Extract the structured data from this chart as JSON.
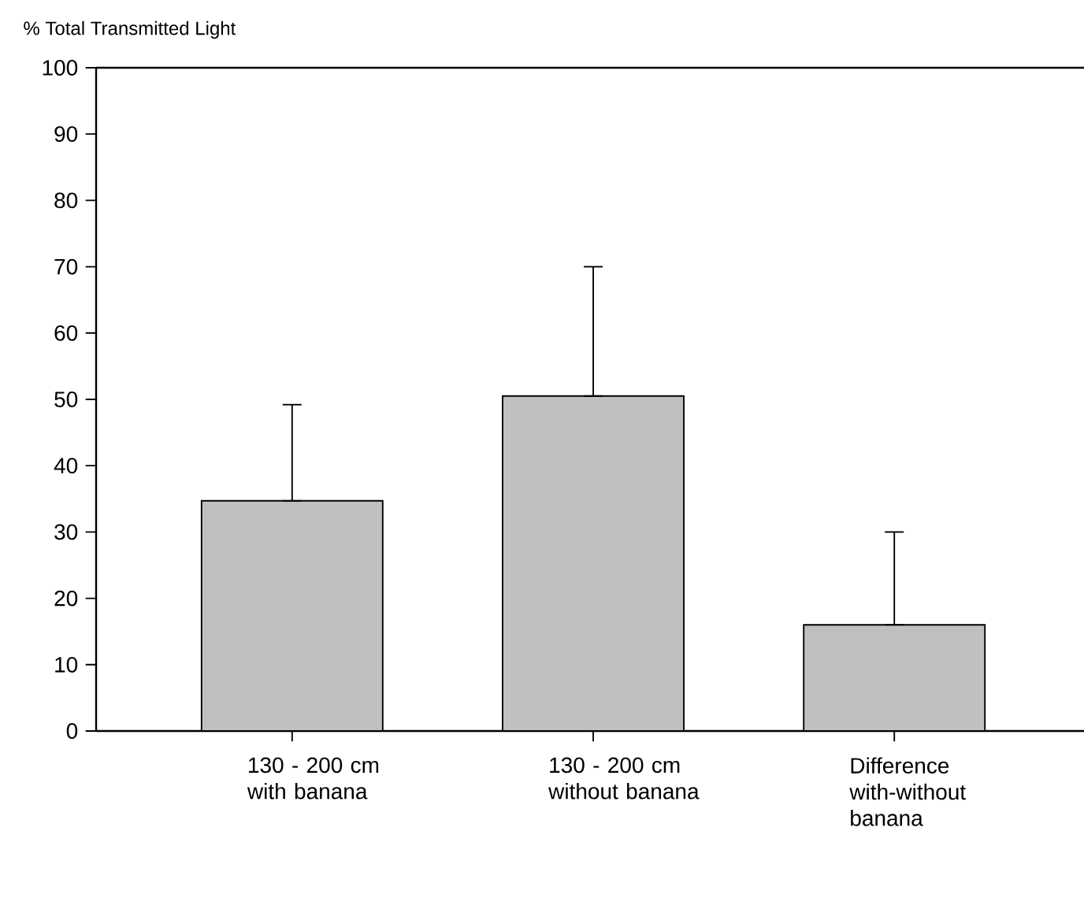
{
  "chart_data": {
    "type": "bar",
    "ylabel": "% Total Transmitted Light",
    "categories": [
      "130 - 200 cm\nwith banana",
      "130 - 200 cm\nwithout banana",
      "Difference\nwith-without\nbanana"
    ],
    "values": [
      34.7,
      50.5,
      16
    ],
    "errors": [
      [
        34.7,
        49.2
      ],
      [
        50.5,
        70
      ],
      [
        16,
        30
      ]
    ],
    "color": "#c0c0c0",
    "ylim": [
      0,
      100
    ],
    "yticks": [
      0,
      10,
      20,
      30,
      40,
      50,
      60,
      70,
      80,
      90,
      100
    ],
    "grid": false
  }
}
